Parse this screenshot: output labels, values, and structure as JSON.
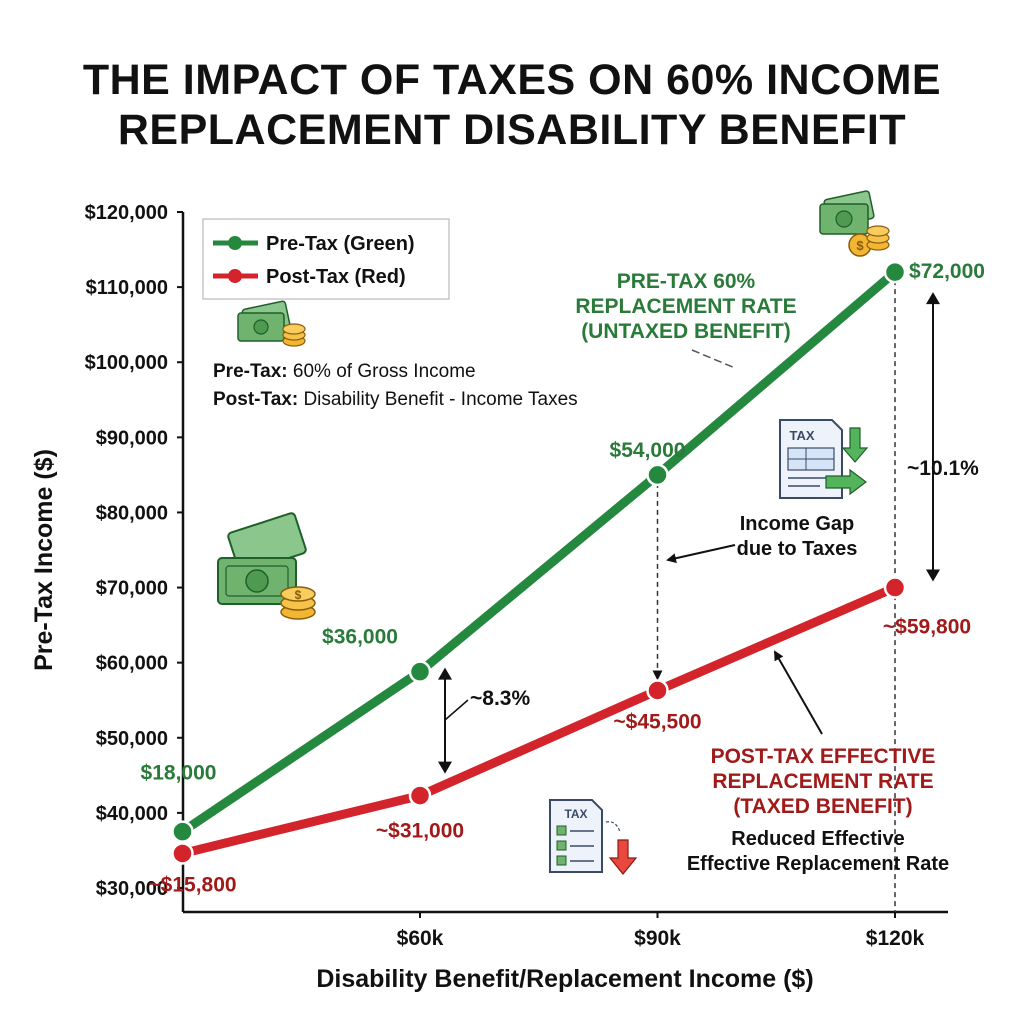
{
  "title_lines": [
    "THE IMPACT OF TAXES ON 60% INCOME",
    "REPLACEMENT DISABILITY BENEFIT"
  ],
  "colors": {
    "green": "#24893f",
    "red": "#d3242c",
    "green_text": "#2a7a3a",
    "red_text": "#a01a1a"
  },
  "legend": [
    {
      "label": "Pre-Tax (Green)",
      "color": "#24893f"
    },
    {
      "label": "Post-Tax (Red)",
      "color": "#d3242c"
    }
  ],
  "notes": [
    {
      "bold": "Pre-Tax:",
      "text": " 60% of Gross Income"
    },
    {
      "bold": "Post-Tax:",
      "text": " Disability Benefit - Income Taxes"
    }
  ],
  "annotations": {
    "pretax_rate": [
      "PRE-TAX 60%",
      "REPLACEMENT RATE",
      "(UNTAXED BENEFIT)"
    ],
    "posttax_rate": [
      "POST-TAX EFFECTIVE",
      "REPLACEMENT RATE",
      "(TAXED BENEFIT)"
    ],
    "reduced": [
      "Reduced Effective",
      "Effective Replacement Rate"
    ],
    "income_gap": [
      "Income Gap",
      "due to Taxes"
    ],
    "gap_60k": "~8.3%",
    "gap_120k": "~10.1%",
    "tax_doc_label": "TAX"
  },
  "icons": [
    "money-stack-icon",
    "tax-document-icon",
    "tax-checklist-icon"
  ],
  "chart_data": {
    "type": "line",
    "title": "THE IMPACT OF TAXES ON 60% INCOME REPLACEMENT DISABILITY BENEFIT",
    "xlabel": "Disability Benefit/Replacement Income ($)",
    "ylabel": "Pre-Tax Income ($)",
    "ylim": [
      30000,
      120000
    ],
    "y_ticks": [
      "$30,000",
      "$40,000",
      "$50,000",
      "$60,000",
      "$70,000",
      "$80,000",
      "$90,000",
      "$100,000",
      "$110,000",
      "$120,000"
    ],
    "x_ticks": [
      {
        "label": "$60k",
        "value": 60000
      },
      {
        "label": "$90k",
        "value": 90000
      },
      {
        "label": "$120k",
        "value": 120000
      }
    ],
    "grid": false,
    "legend_position": "top-left",
    "x": [
      30000,
      60000,
      90000,
      120000
    ],
    "series": [
      {
        "name": "Pre-Tax (Green)",
        "color": "#24893f",
        "values": [
          37500,
          58800,
          85000,
          112000
        ],
        "labels": [
          "$18,000",
          "$36,000",
          "$54,000",
          "$72,000"
        ]
      },
      {
        "name": "Post-Tax (Red)",
        "color": "#d3242c",
        "values": [
          34600,
          42300,
          56300,
          70000
        ],
        "labels": [
          "~$15,800",
          "~$31,000",
          "~$45,500",
          "~$59,800"
        ]
      }
    ]
  }
}
